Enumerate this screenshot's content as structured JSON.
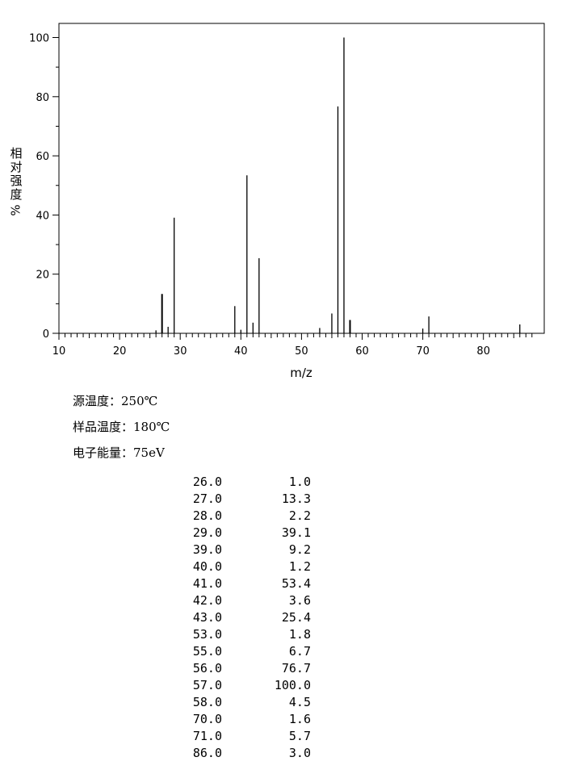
{
  "chart_data": {
    "type": "bar",
    "xlabel": "m/z",
    "ylabel": "相对强度 %",
    "xlim": [
      10,
      89
    ],
    "ylim": [
      0,
      104
    ],
    "x_ticks": [
      10,
      20,
      30,
      40,
      50,
      60,
      70,
      80
    ],
    "y_ticks": [
      0,
      20,
      40,
      60,
      80,
      100
    ],
    "grid": false,
    "peaks": [
      {
        "mz": 26.0,
        "intensity": 1.0
      },
      {
        "mz": 27.0,
        "intensity": 13.3
      },
      {
        "mz": 28.0,
        "intensity": 2.2
      },
      {
        "mz": 29.0,
        "intensity": 39.1
      },
      {
        "mz": 39.0,
        "intensity": 9.2
      },
      {
        "mz": 40.0,
        "intensity": 1.2
      },
      {
        "mz": 41.0,
        "intensity": 53.4
      },
      {
        "mz": 42.0,
        "intensity": 3.6
      },
      {
        "mz": 43.0,
        "intensity": 25.4
      },
      {
        "mz": 53.0,
        "intensity": 1.8
      },
      {
        "mz": 55.0,
        "intensity": 6.7
      },
      {
        "mz": 56.0,
        "intensity": 76.7
      },
      {
        "mz": 57.0,
        "intensity": 100.0
      },
      {
        "mz": 58.0,
        "intensity": 4.5
      },
      {
        "mz": 70.0,
        "intensity": 1.6
      },
      {
        "mz": 71.0,
        "intensity": 5.7
      },
      {
        "mz": 86.0,
        "intensity": 3.0
      }
    ]
  },
  "ylabel_chars": [
    "相",
    "对",
    "强",
    "度",
    "%"
  ],
  "conditions": {
    "source_temp": "源温度：250℃",
    "sample_temp": "样品温度：180℃",
    "electron_energy": "电子能量：75eV"
  },
  "table_rows": [
    {
      "mz": "26.0",
      "abundance": "1.0"
    },
    {
      "mz": "27.0",
      "abundance": "13.3"
    },
    {
      "mz": "28.0",
      "abundance": "2.2"
    },
    {
      "mz": "29.0",
      "abundance": "39.1"
    },
    {
      "mz": "39.0",
      "abundance": "9.2"
    },
    {
      "mz": "40.0",
      "abundance": "1.2"
    },
    {
      "mz": "41.0",
      "abundance": "53.4"
    },
    {
      "mz": "42.0",
      "abundance": "3.6"
    },
    {
      "mz": "43.0",
      "abundance": "25.4"
    },
    {
      "mz": "53.0",
      "abundance": "1.8"
    },
    {
      "mz": "55.0",
      "abundance": "6.7"
    },
    {
      "mz": "56.0",
      "abundance": "76.7"
    },
    {
      "mz": "57.0",
      "abundance": "100.0"
    },
    {
      "mz": "58.0",
      "abundance": "4.5"
    },
    {
      "mz": "70.0",
      "abundance": "1.6"
    },
    {
      "mz": "71.0",
      "abundance": "5.7"
    },
    {
      "mz": "86.0",
      "abundance": "3.0"
    }
  ]
}
